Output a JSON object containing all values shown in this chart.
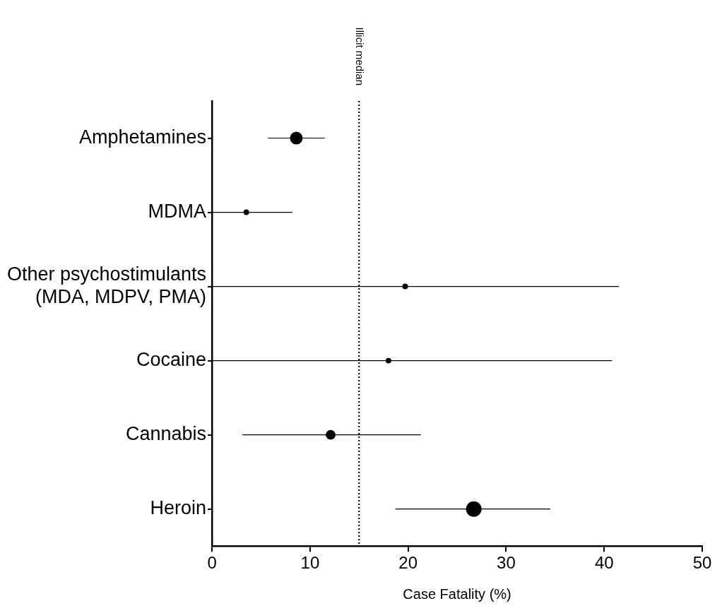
{
  "chart_data": {
    "type": "bubble",
    "orientation": "horizontal",
    "xlabel": "Case Fatality (%)",
    "categories": [
      "Amphetamines",
      "MDMA",
      "Other psychostimulants\n(MDA, MDPV, PMA)",
      "Cocaine",
      "Cannabis",
      "Heroin"
    ],
    "values": [
      8.6,
      3.5,
      19.7,
      18.0,
      12.1,
      26.7
    ],
    "errors": [
      [
        5.7,
        11.5
      ],
      [
        0,
        8.2
      ],
      [
        0,
        41.5
      ],
      [
        0,
        40.8
      ],
      [
        3.1,
        21.3
      ],
      [
        18.7,
        34.5
      ]
    ],
    "sizes": [
      0.67,
      0.13,
      0.13,
      0.13,
      0.4,
      1
    ],
    "color": "#000000",
    "xlim": [
      0,
      50
    ],
    "xticks": [
      0,
      10,
      20,
      30,
      40,
      50
    ],
    "ref_lines": [
      {
        "axis": "x",
        "value": 15,
        "label": "Illicit median",
        "line_style": "dotted"
      }
    ],
    "grid": false,
    "legend": false
  }
}
